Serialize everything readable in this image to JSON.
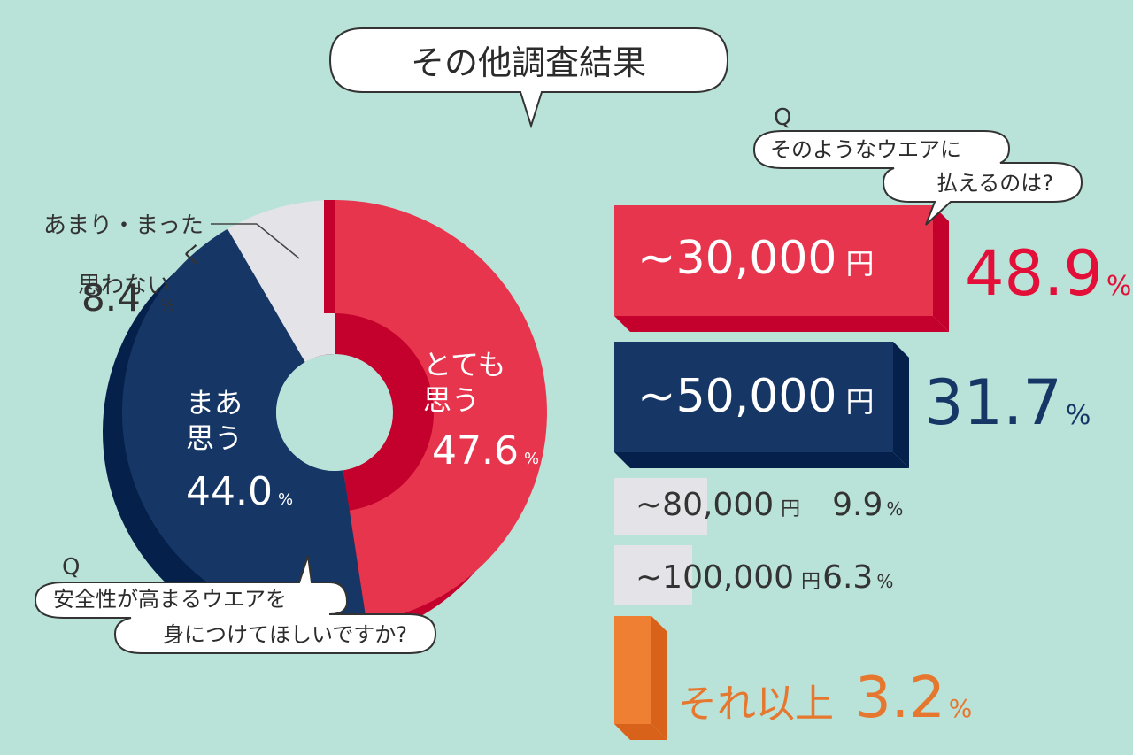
{
  "title": "その他調査結果",
  "colors": {
    "background": "#b9e2d8",
    "red": "#e8354e",
    "navy": "#163766",
    "gray": "#e4e4e8",
    "orange": "#ef8033"
  },
  "chart_data": [
    {
      "type": "pie",
      "question": "安全性が高まるウエアを身につけてほしいですか?",
      "question_lines": [
        "安全性が高まるウエアを",
        "身につけてほしいですか?"
      ],
      "question_mark": "Q",
      "slices": [
        {
          "label_lines": [
            "とても",
            "思う"
          ],
          "value": 47.6,
          "value_text": "47.6",
          "color": "#e8354e"
        },
        {
          "label_lines": [
            "まあ",
            "思う"
          ],
          "value": 44.0,
          "value_text": "44.0",
          "color": "#163766"
        },
        {
          "label_lines": [
            "あまり・まったく",
            "思わない"
          ],
          "value": 8.4,
          "value_text": "8.4",
          "color": "#e4e4e8"
        }
      ],
      "unit": "%"
    },
    {
      "type": "bar",
      "question": "そのようなウエアに払えるのは?",
      "question_lines": [
        "そのようなウエアに",
        "払えるのは?"
      ],
      "question_mark": "Q",
      "categories": [
        "~30,000",
        "~50,000",
        "~80,000",
        "~100,000",
        "それ以上"
      ],
      "yen": "円",
      "values": [
        48.9,
        31.7,
        9.9,
        6.3,
        3.2
      ],
      "value_texts": [
        "48.9",
        "31.7",
        "9.9",
        "6.3",
        "3.2"
      ],
      "unit": "%"
    }
  ]
}
